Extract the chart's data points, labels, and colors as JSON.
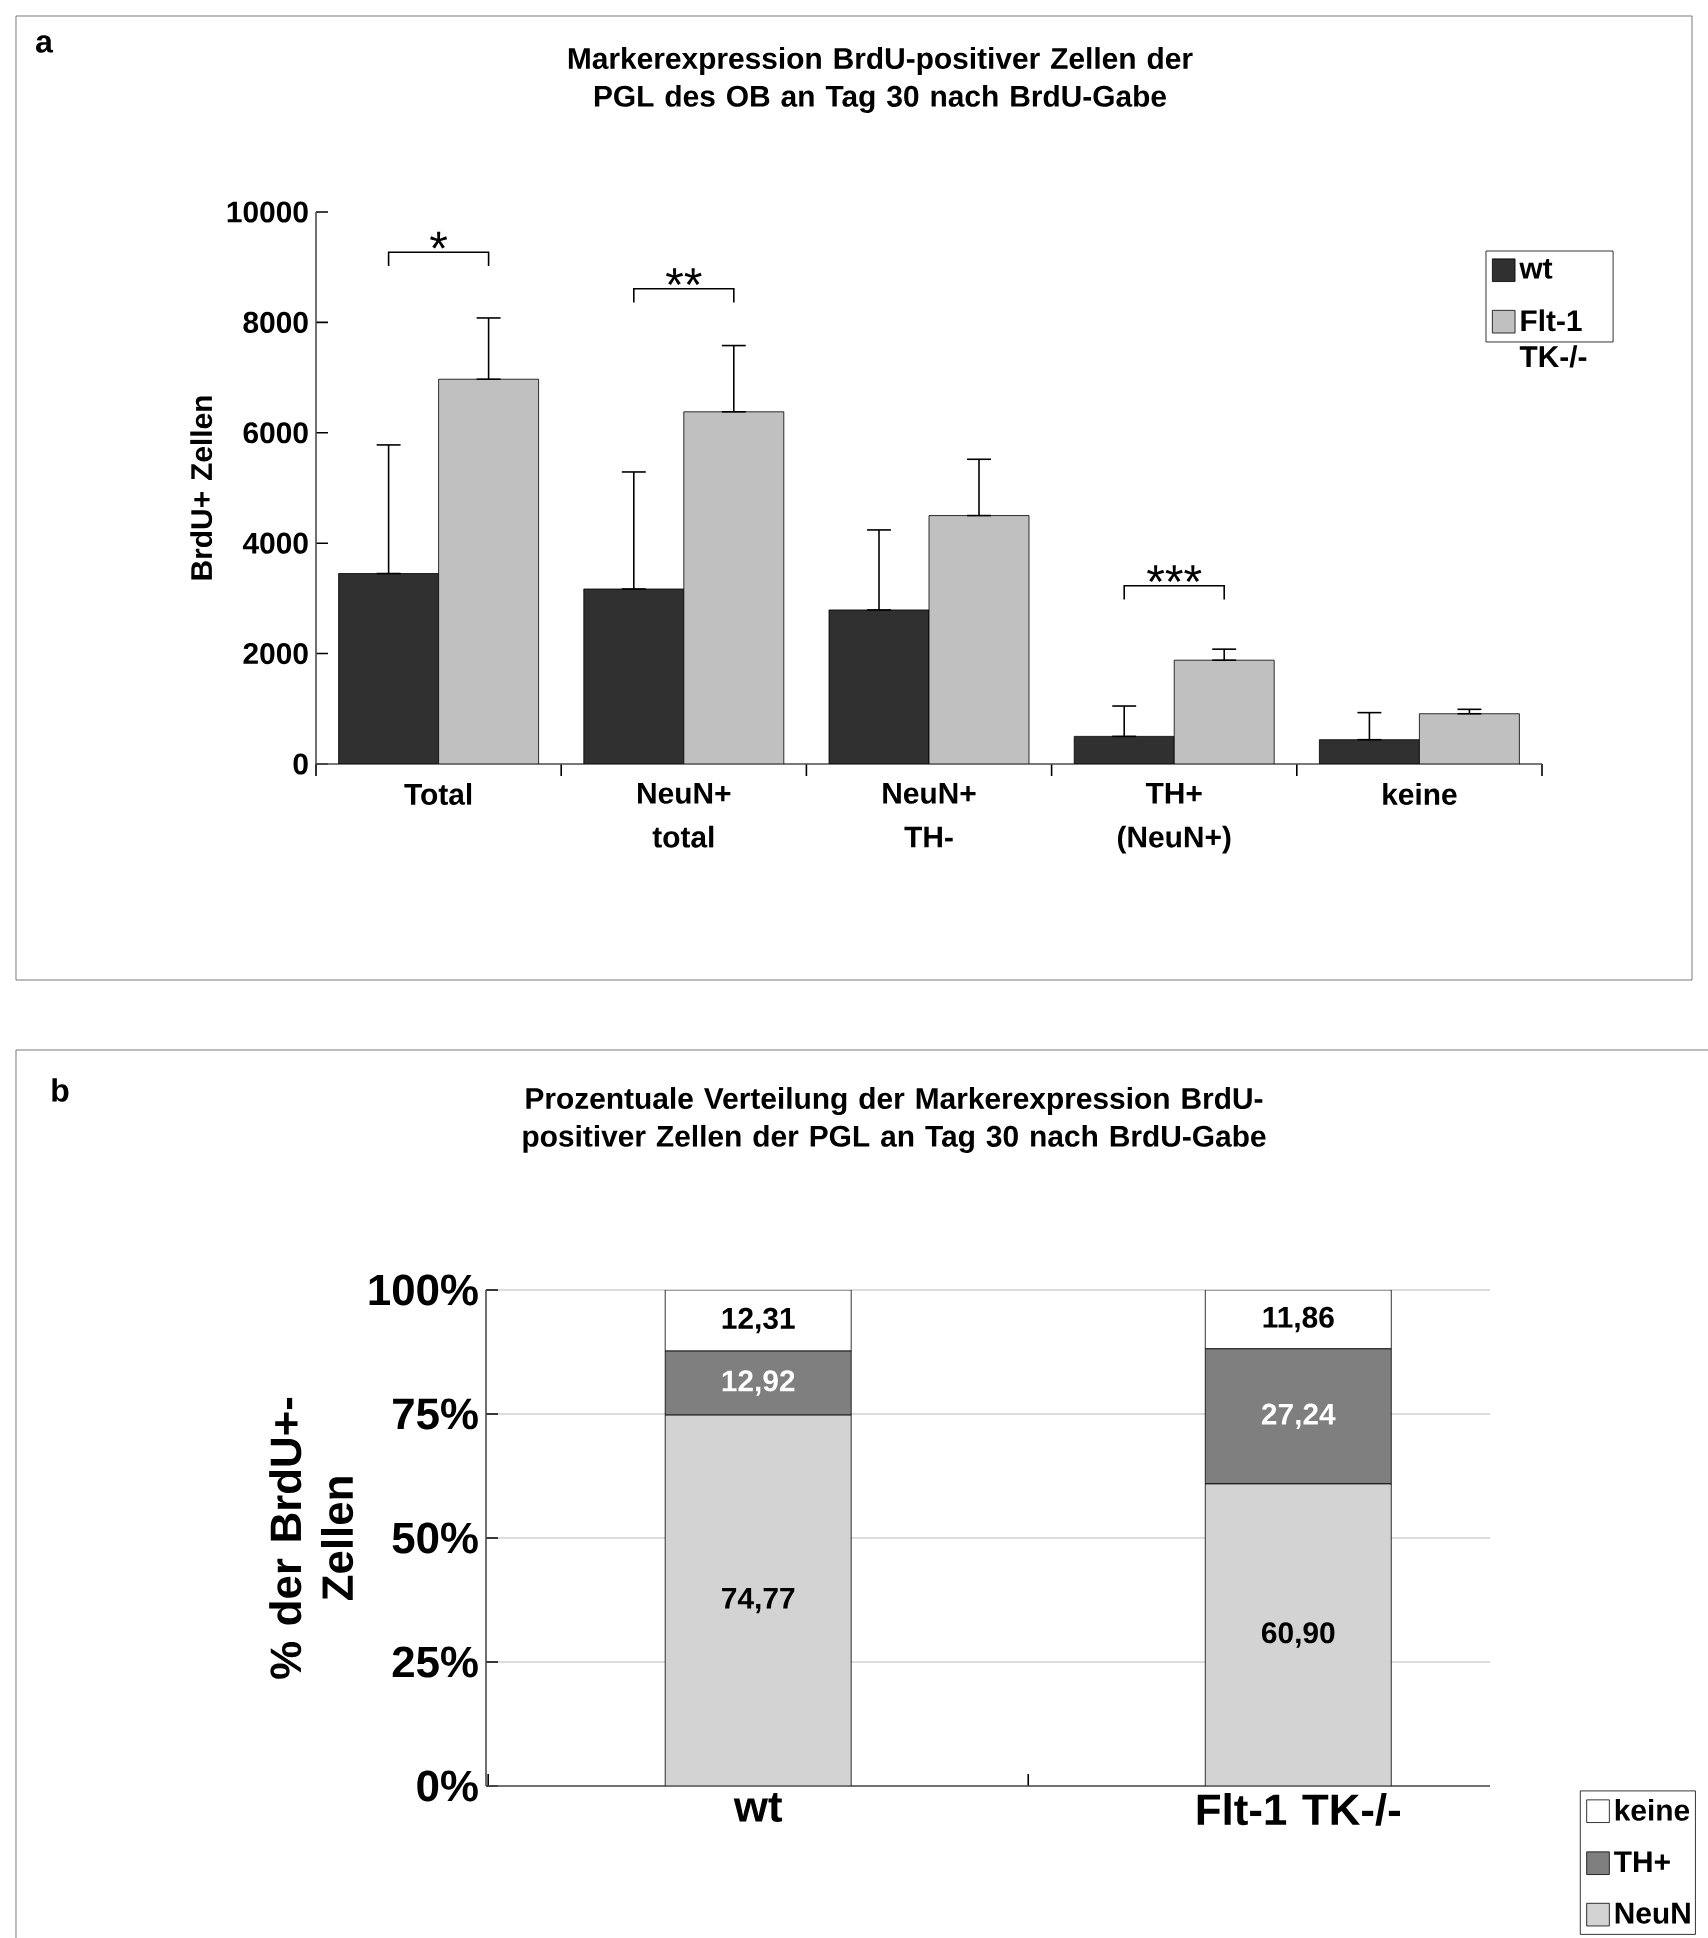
{
  "chart_data": [
    {
      "type": "bar",
      "title": "Markerexpression BrdU-positiver Zellen der PGL des OB an Tag 30 nach BrdU-Gabe",
      "ylabel": "BrdU+ Zellen",
      "categories": [
        "Total",
        "NeuN+ total",
        "NeuN+ TH-",
        "TH+ (NeuN+)",
        "keine"
      ],
      "series": [
        {
          "name": "wt",
          "color": "#303030",
          "values": [
            3450,
            3170,
            2790,
            500,
            440
          ],
          "errors": [
            [
              3450,
              5780
            ],
            [
              3170,
              5290
            ],
            [
              2790,
              4240
            ],
            [
              500,
              1050
            ],
            [
              440,
              930
            ]
          ]
        },
        {
          "name": "Flt-1 TK-/-",
          "color": "#c0c0c0",
          "values": [
            6970,
            6380,
            4500,
            1880,
            910
          ],
          "errors": [
            [
              6970,
              8080
            ],
            [
              6380,
              7580
            ],
            [
              4500,
              5520
            ],
            [
              1880,
              2080
            ],
            [
              910,
              990
            ]
          ]
        }
      ],
      "ylim": [
        0,
        10000
      ],
      "yticks": [
        0,
        2000,
        4000,
        6000,
        8000,
        10000
      ],
      "legend": "top right",
      "annotations": [
        "a",
        "*",
        "**",
        "***"
      ]
    },
    {
      "type": "bar",
      "stacked": true,
      "title": "Prozentuale Verteilung der Markerexpression BrdU-positiver Zellen der PGL an Tag 30 nach BrdU-Gabe",
      "ylabel": "% der BrdU+- Zellen",
      "categories": [
        "wt",
        "Flt-1 TK-/-"
      ],
      "series": [
        {
          "name": "NeuN",
          "color": "#d3d3d3",
          "values": [
            74.77,
            60.9
          ],
          "value_labels": [
            "74,77",
            "60,90"
          ]
        },
        {
          "name": "TH+",
          "color": "#7f7f7f",
          "values": [
            12.92,
            27.24
          ],
          "value_labels": [
            "12,92",
            "27,24"
          ]
        },
        {
          "name": "keine",
          "color": "#ffffff",
          "values": [
            12.31,
            11.86
          ],
          "value_labels": [
            "12,31",
            "11,86"
          ]
        }
      ],
      "ylim": [
        0,
        100
      ],
      "yticks": [
        {
          "value": 0,
          "label": "0%"
        },
        {
          "value": 25,
          "label": "25%"
        },
        {
          "value": 50,
          "label": "50%"
        },
        {
          "value": 75,
          "label": "75%"
        },
        {
          "value": 100,
          "label": "100%"
        }
      ],
      "grid": "y",
      "legend": "bottom right",
      "annotations": [
        "b"
      ]
    }
  ]
}
